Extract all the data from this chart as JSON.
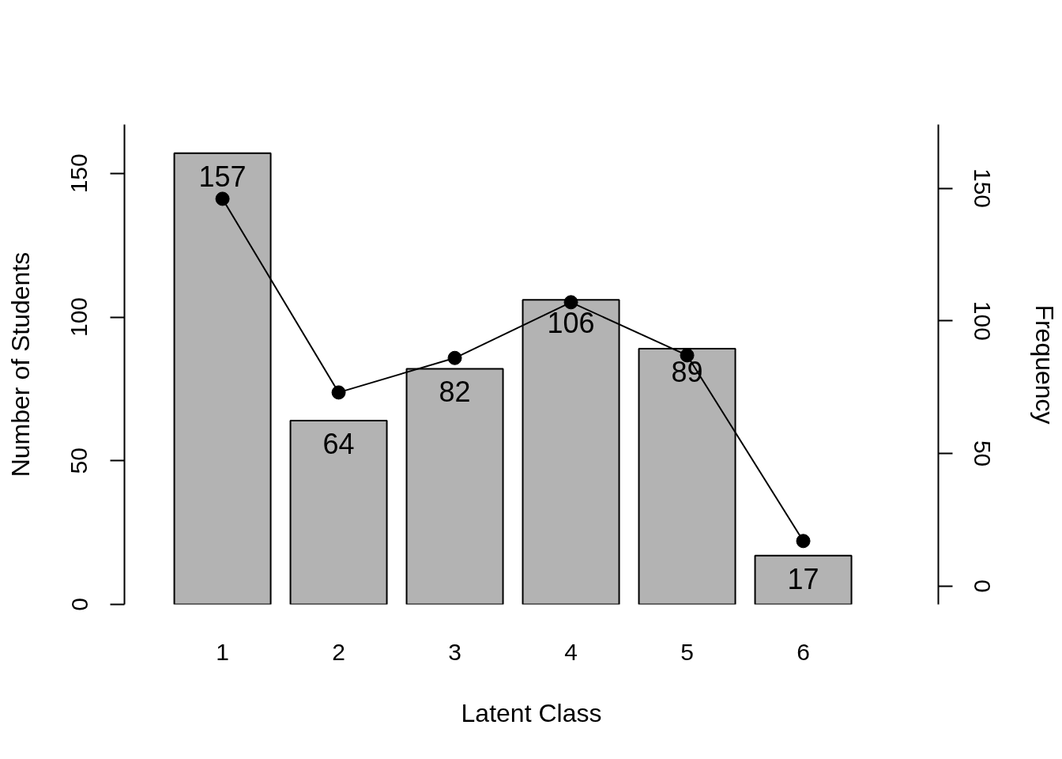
{
  "chart_data": {
    "type": "bar",
    "xlabel": "Latent Class",
    "ylabel": "Number of Students",
    "y2label": "Frequency",
    "categories": [
      "1",
      "2",
      "3",
      "4",
      "5",
      "6"
    ],
    "series": [
      {
        "color": "#b3b3b3",
        "values": [
          157,
          64,
          82,
          106,
          89,
          17
        ],
        "value_labels": [
          "157",
          "64",
          "82",
          "106",
          "89",
          "17"
        ]
      },
      {
        "type": "line",
        "axis": "y2",
        "color": "#000000",
        "marker": "circle",
        "values": [
          146,
          73,
          86,
          107,
          87,
          17
        ]
      }
    ],
    "ylim": [
      0,
      167
    ],
    "yticks": [
      0,
      50,
      100,
      150
    ],
    "y2lim": [
      -6.9,
      174
    ],
    "y2ticks": [
      0,
      50,
      100,
      150
    ]
  }
}
